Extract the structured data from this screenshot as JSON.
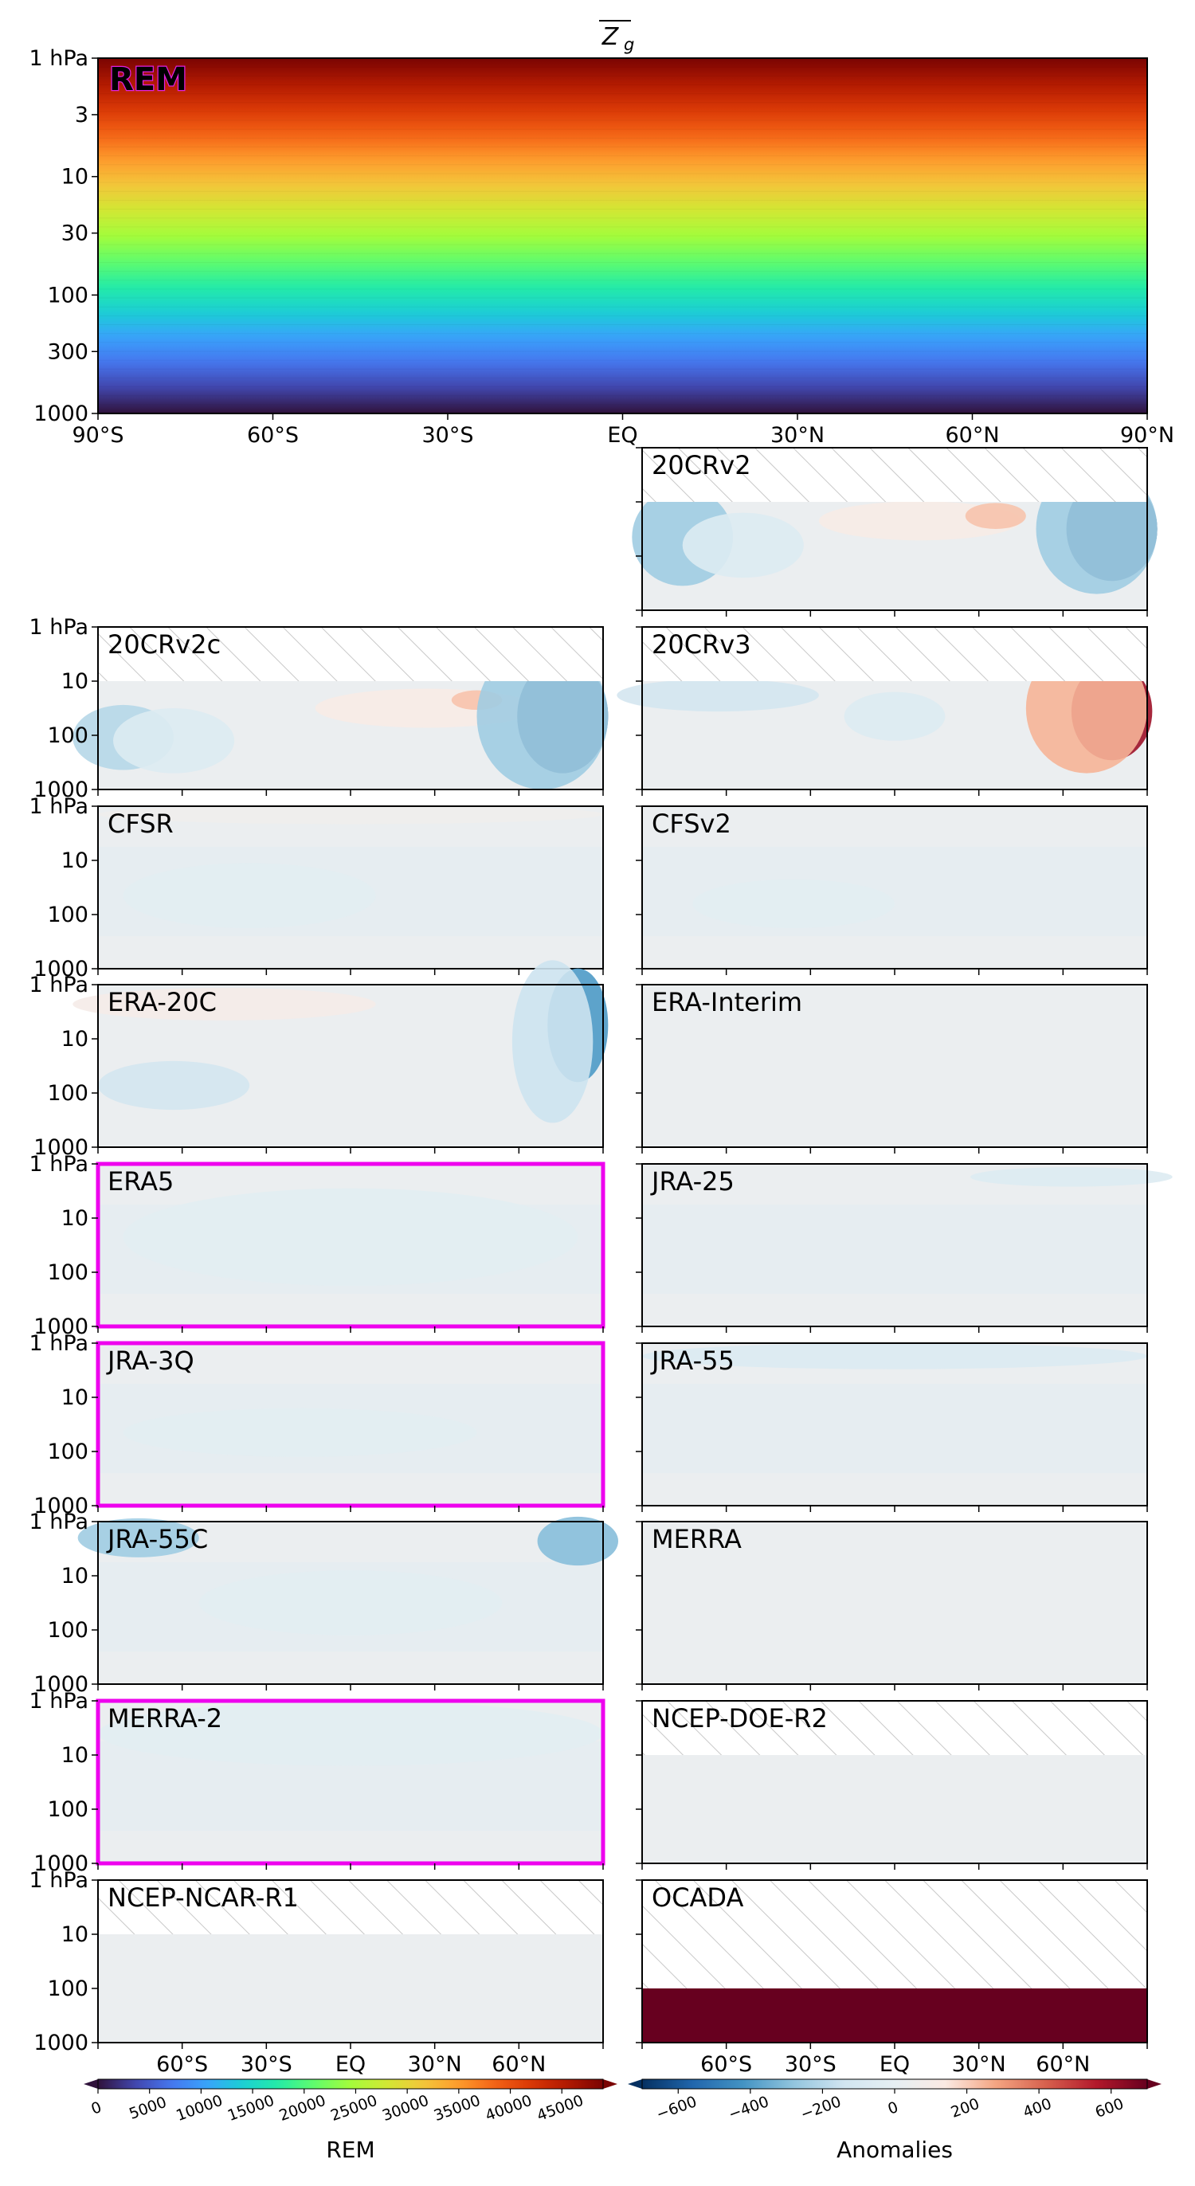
{
  "figure": {
    "title_main": "Z",
    "title_sub": "g"
  },
  "chart_data": {
    "type": "heatmap",
    "x_ticks": [
      "90°S",
      "60°S",
      "30°S",
      "EQ",
      "30°N",
      "60°N",
      "90°N"
    ],
    "x_ticks_bottom": [
      "60°S",
      "30°S",
      "EQ",
      "30°N",
      "60°N"
    ],
    "y_ticks": [
      "1 hPa",
      "3",
      "10",
      "30",
      "100",
      "300",
      "1000"
    ],
    "y_ticks_small": [
      "1 hPa",
      "10",
      "100",
      "1000"
    ],
    "xlim": [
      -90,
      90
    ],
    "ylim_hPa": [
      1000,
      1
    ],
    "y_scale": "log",
    "rem": {
      "label": "REM",
      "colorbar_label": "REM",
      "colorbar_ticks": [
        "0",
        "5000",
        "10000",
        "15000",
        "20000",
        "25000",
        "30000",
        "35000",
        "40000",
        "45000"
      ],
      "range": [
        0,
        49000
      ],
      "colormap": [
        "#30123b",
        "#4145ab",
        "#4675ed",
        "#39a2fc",
        "#1bcfd4",
        "#24eca6",
        "#61fc6c",
        "#a4fc3b",
        "#d1e834",
        "#f3c63a",
        "#fe9b2d",
        "#f36315",
        "#d93806",
        "#b11901",
        "#7a0403"
      ]
    },
    "anomalies": {
      "colorbar_label": "Anomalies",
      "colorbar_ticks": [
        "−600",
        "−400",
        "−200",
        "0",
        "200",
        "400",
        "600"
      ],
      "range": [
        -700,
        700
      ],
      "colormap": [
        "#053061",
        "#2166ac",
        "#4393c3",
        "#92c5de",
        "#d1e5f0",
        "#e6eff3",
        "#fbeae3",
        "#f4a582",
        "#d6604d",
        "#b2182b",
        "#67001f"
      ]
    },
    "panels": [
      {
        "name": "20CRv2",
        "highlight": false,
        "missing_top_hPa": 10
      },
      {
        "name": "20CRv2c",
        "highlight": false,
        "missing_top_hPa": 10
      },
      {
        "name": "20CRv3",
        "highlight": false,
        "missing_top_hPa": 10
      },
      {
        "name": "CFSR",
        "highlight": false
      },
      {
        "name": "CFSv2",
        "highlight": false
      },
      {
        "name": "ERA-20C",
        "highlight": false
      },
      {
        "name": "ERA-Interim",
        "highlight": false
      },
      {
        "name": "ERA5",
        "highlight": true
      },
      {
        "name": "JRA-25",
        "highlight": false
      },
      {
        "name": "JRA-3Q",
        "highlight": true
      },
      {
        "name": "JRA-55",
        "highlight": false
      },
      {
        "name": "JRA-55C",
        "highlight": false
      },
      {
        "name": "MERRA",
        "highlight": false
      },
      {
        "name": "MERRA-2",
        "highlight": true
      },
      {
        "name": "NCEP-DOE-R2",
        "highlight": false,
        "missing_top_hPa": 10
      },
      {
        "name": "NCEP-NCAR-R1",
        "highlight": false,
        "missing_top_hPa": 10
      },
      {
        "name": "OCADA",
        "highlight": false,
        "missing_top_hPa": 100
      }
    ]
  }
}
